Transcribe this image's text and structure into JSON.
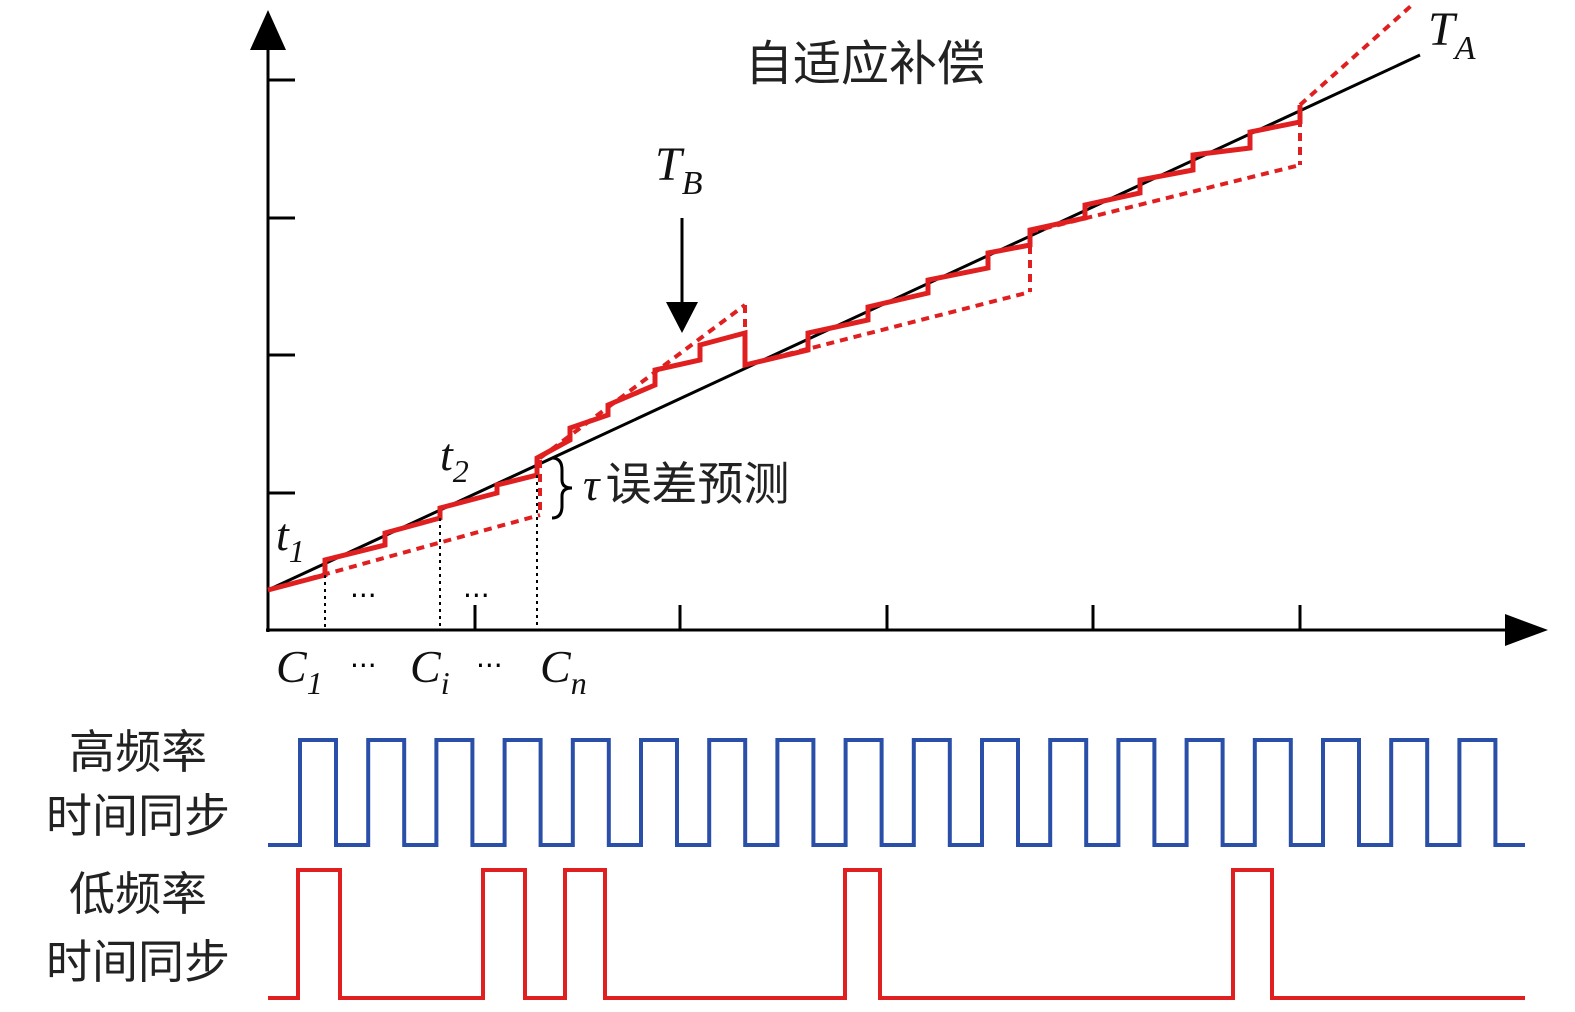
{
  "title": "自适应补偿",
  "curves": [
    {
      "main": "T",
      "sub": "A"
    },
    {
      "main": "T",
      "sub": "B"
    }
  ],
  "points": [
    {
      "main": "t",
      "sub": "1"
    },
    {
      "main": "t",
      "sub": "2"
    }
  ],
  "error_label": {
    "symbol": "τ",
    "text": "误差预测"
  },
  "x_labels": [
    {
      "main": "C",
      "sub": "1"
    },
    {
      "text": "···"
    },
    {
      "main": "C",
      "sub": "i"
    },
    {
      "text": "···"
    },
    {
      "main": "C",
      "sub": "n"
    }
  ],
  "ellipses": [
    "···",
    "···"
  ],
  "signals": [
    {
      "label": [
        "高频率",
        "时间同步"
      ]
    },
    {
      "label": [
        "低频率",
        "时间同步"
      ]
    }
  ]
}
